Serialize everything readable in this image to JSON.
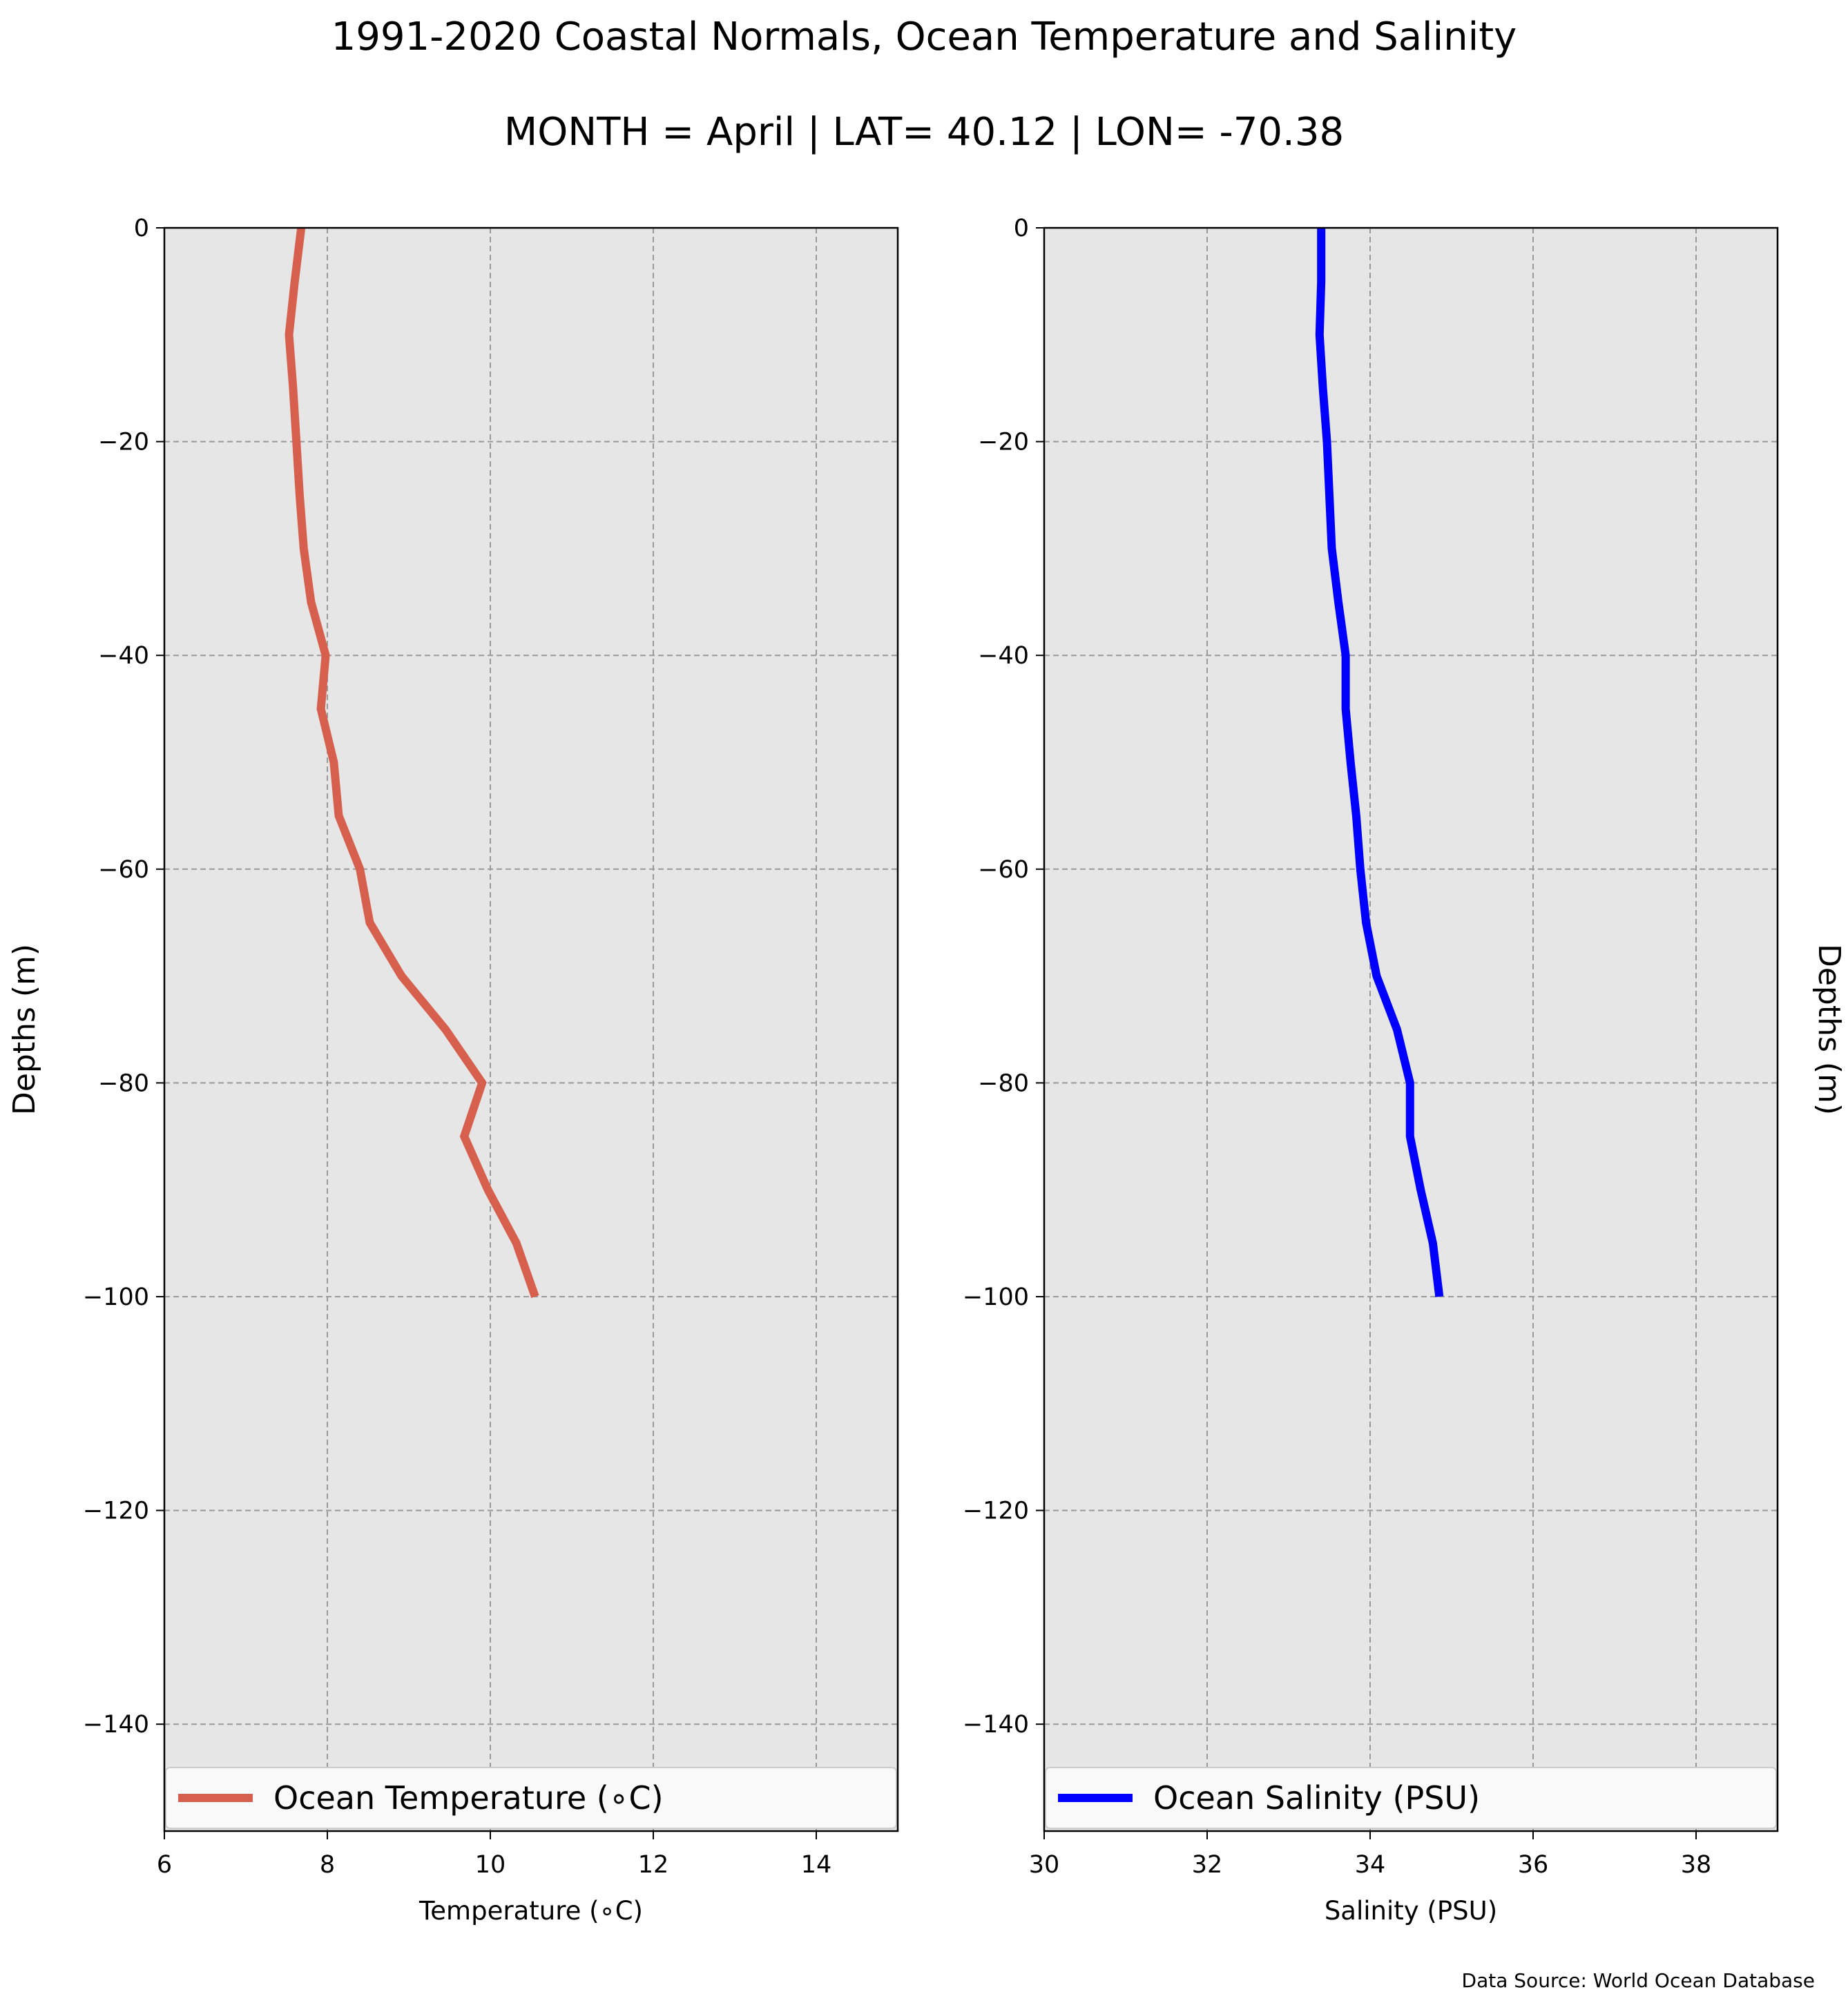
{
  "figure": {
    "title": "1991-2020 Coastal Normals, Ocean Temperature and Salinity",
    "subtitle": "MONTH = April | LAT= 40.12 | LON= -70.38",
    "source": "Data Source: World Ocean Database"
  },
  "chart_data": [
    {
      "type": "line",
      "xlabel": "Temperature (∘C)",
      "ylabel": "Depths (m)",
      "xlim": [
        6,
        15
      ],
      "ylim": [
        -150,
        0
      ],
      "xticks": [
        6,
        8,
        10,
        12,
        14
      ],
      "yticks": [
        0,
        -20,
        -40,
        -60,
        -80,
        -100,
        -120,
        -140
      ],
      "xtick_labels": [
        "6",
        "8",
        "10",
        "12",
        "14"
      ],
      "ytick_labels": [
        "0",
        "−20",
        "−40",
        "−60",
        "−80",
        "−100",
        "−120",
        "−140"
      ],
      "grid": true,
      "background_color": "#e6e6e6",
      "legend_position": "bottom",
      "series": [
        {
          "name": "Ocean Temperature (∘C)",
          "color": "#d6604d",
          "x": [
            7.68,
            7.6,
            7.53,
            7.58,
            7.62,
            7.66,
            7.71,
            7.8,
            7.98,
            7.92,
            8.08,
            8.14,
            8.4,
            8.52,
            8.91,
            9.45,
            9.9,
            9.68,
            9.97,
            10.32,
            10.55
          ],
          "y": [
            0,
            -5,
            -10,
            -15,
            -20,
            -25,
            -30,
            -35,
            -40,
            -45,
            -50,
            -55,
            -60,
            -65,
            -70,
            -75,
            -80,
            -85,
            -90,
            -95,
            -100
          ]
        }
      ]
    },
    {
      "type": "line",
      "xlabel": "Salinity (PSU)",
      "ylabel": "Depths (m)",
      "xlim": [
        30,
        39
      ],
      "ylim": [
        -150,
        0
      ],
      "xticks": [
        30,
        32,
        34,
        36,
        38
      ],
      "yticks": [
        0,
        -20,
        -40,
        -60,
        -80,
        -100,
        -120,
        -140
      ],
      "xtick_labels": [
        "30",
        "32",
        "34",
        "36",
        "38"
      ],
      "ytick_labels": [
        "0",
        "−20",
        "−40",
        "−60",
        "−80",
        "−100",
        "−120",
        "−140"
      ],
      "grid": true,
      "background_color": "#e6e6e6",
      "legend_position": "bottom",
      "series": [
        {
          "name": "Ocean Salinity (PSU)",
          "color": "#0000ff",
          "x": [
            33.4,
            33.4,
            33.38,
            33.42,
            33.47,
            33.5,
            33.53,
            33.61,
            33.7,
            33.7,
            33.76,
            33.83,
            33.88,
            33.95,
            34.08,
            34.33,
            34.49,
            34.49,
            34.62,
            34.77,
            34.85
          ],
          "y": [
            0,
            -5,
            -10,
            -15,
            -20,
            -25,
            -30,
            -35,
            -40,
            -45,
            -50,
            -55,
            -60,
            -65,
            -70,
            -75,
            -80,
            -85,
            -90,
            -95,
            -100
          ]
        }
      ]
    }
  ]
}
